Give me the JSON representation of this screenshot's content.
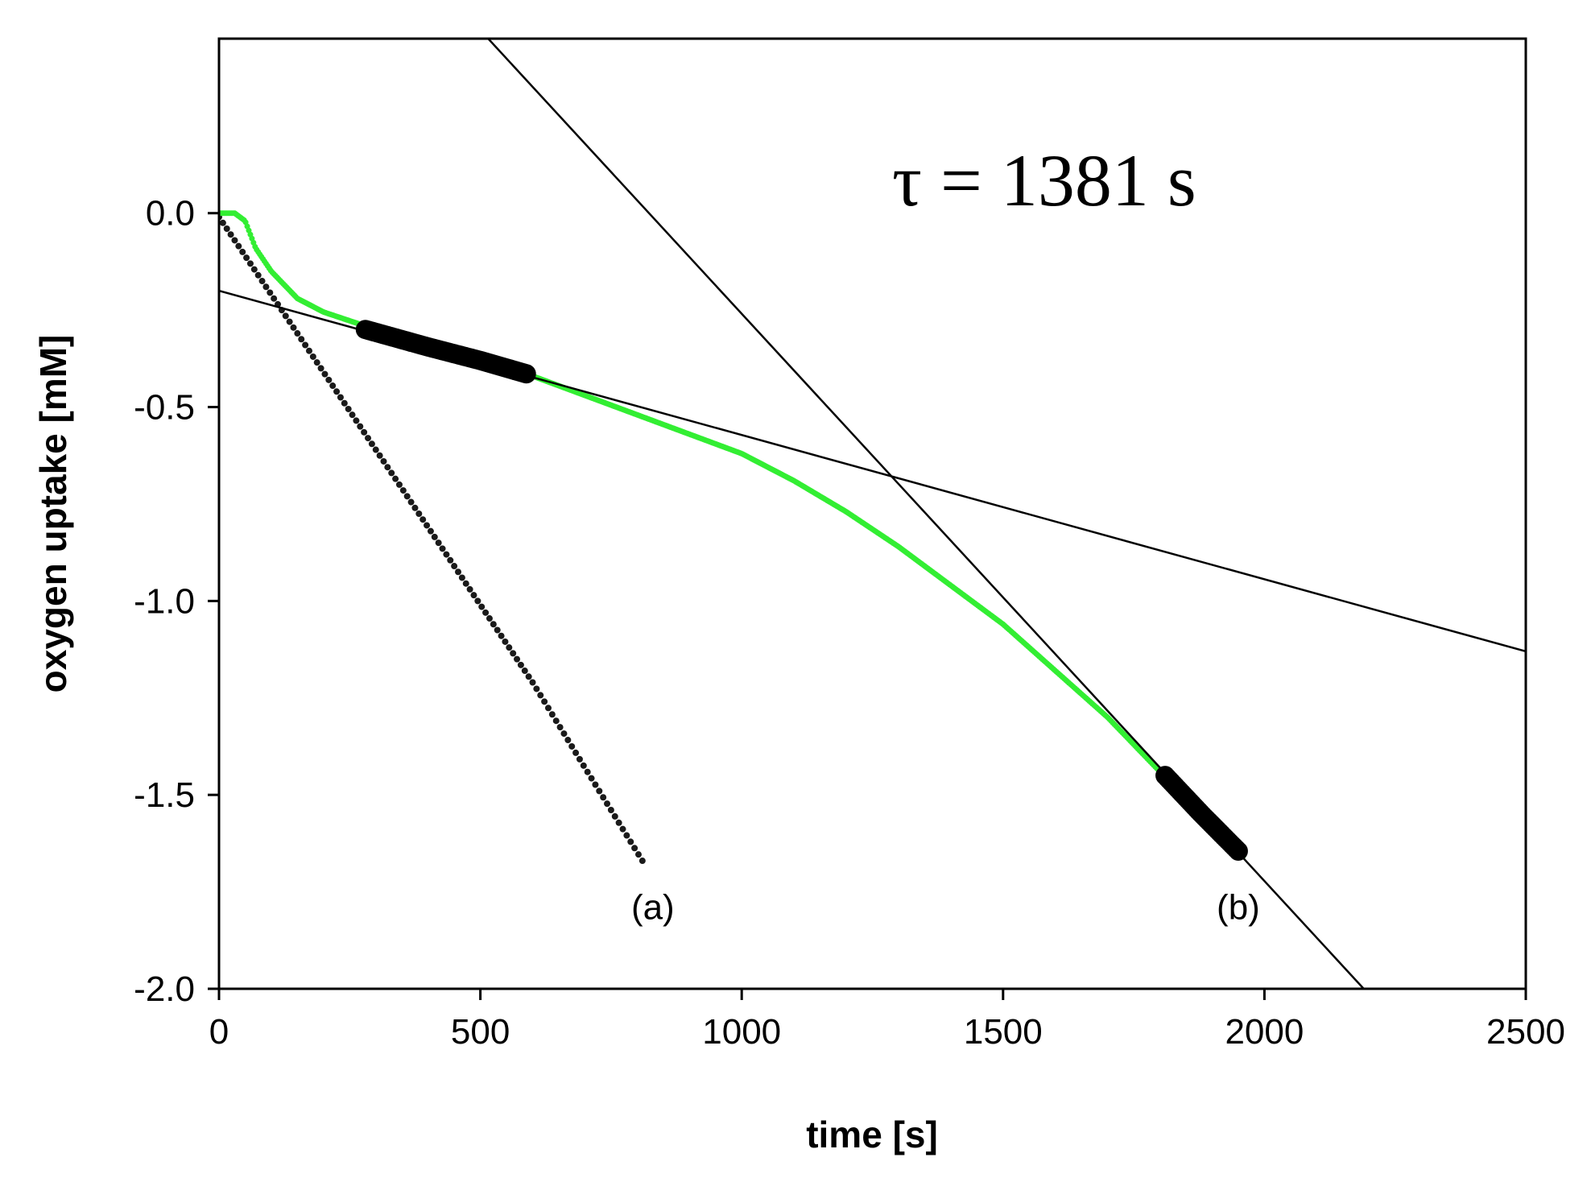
{
  "chart_data": {
    "type": "scatter",
    "xlabel": "time [s]",
    "ylabel": "oxygen uptake [mM]",
    "xlim": [
      0,
      2500
    ],
    "ylim": [
      -2.0,
      0.45
    ],
    "x_ticks": [
      0,
      500,
      1000,
      1500,
      2000,
      2500
    ],
    "x_tick_labels": [
      "0",
      "500",
      "1000",
      "1500",
      "2000",
      "2500"
    ],
    "y_ticks": [
      0.0,
      -0.5,
      -1.0,
      -1.5,
      -2.0
    ],
    "y_tick_labels": [
      "0.0",
      "-0.5",
      "-1.0",
      "-1.5",
      "-2.0"
    ],
    "grid": false,
    "annotation": "τ = 1381 s",
    "curve_labels": [
      {
        "text": "(a)",
        "x": 830,
        "y": -1.82
      },
      {
        "text": "(b)",
        "x": 1950,
        "y": -1.82
      }
    ],
    "series": [
      {
        "kind": "dotted-curve",
        "color": "#1a1a1a",
        "x_start": 0,
        "x_end": 810,
        "points": [
          [
            0,
            -0.01
          ],
          [
            100,
            -0.21
          ],
          [
            200,
            -0.41
          ],
          [
            300,
            -0.61
          ],
          [
            400,
            -0.81
          ],
          [
            500,
            -1.01
          ],
          [
            600,
            -1.21
          ],
          [
            700,
            -1.43
          ],
          [
            810,
            -1.67
          ]
        ]
      },
      {
        "kind": "data-curve",
        "color": "#33ee33",
        "points": [
          [
            0,
            0.0
          ],
          [
            30,
            0.0
          ],
          [
            50,
            -0.02
          ],
          [
            70,
            -0.09
          ],
          [
            100,
            -0.15
          ],
          [
            150,
            -0.22
          ],
          [
            200,
            -0.255
          ],
          [
            300,
            -0.3
          ],
          [
            400,
            -0.345
          ],
          [
            500,
            -0.38
          ],
          [
            600,
            -0.42
          ],
          [
            700,
            -0.47
          ],
          [
            800,
            -0.52
          ],
          [
            900,
            -0.57
          ],
          [
            1000,
            -0.62
          ],
          [
            1100,
            -0.69
          ],
          [
            1200,
            -0.77
          ],
          [
            1300,
            -0.86
          ],
          [
            1400,
            -0.96
          ],
          [
            1500,
            -1.06
          ],
          [
            1600,
            -1.18
          ],
          [
            1700,
            -1.3
          ],
          [
            1800,
            -1.44
          ],
          [
            1900,
            -1.57
          ],
          [
            1960,
            -1.66
          ]
        ]
      },
      {
        "kind": "fit-segment",
        "color": "#000000",
        "x_start": 280,
        "x_end": 590,
        "points": [
          [
            280,
            -0.3
          ],
          [
            400,
            -0.345
          ],
          [
            500,
            -0.38
          ],
          [
            590,
            -0.415
          ]
        ]
      },
      {
        "kind": "fit-segment",
        "color": "#000000",
        "x_start": 1810,
        "x_end": 1950,
        "points": [
          [
            1810,
            -1.45
          ],
          [
            1880,
            -1.55
          ],
          [
            1950,
            -1.645
          ]
        ]
      }
    ],
    "fit_lines": [
      {
        "x1": 0,
        "y1": -0.2,
        "x2": 2500,
        "y2": -1.13
      },
      {
        "x1": 515,
        "y1": 0.45,
        "x2": 2190,
        "y2": -2.0
      }
    ]
  }
}
